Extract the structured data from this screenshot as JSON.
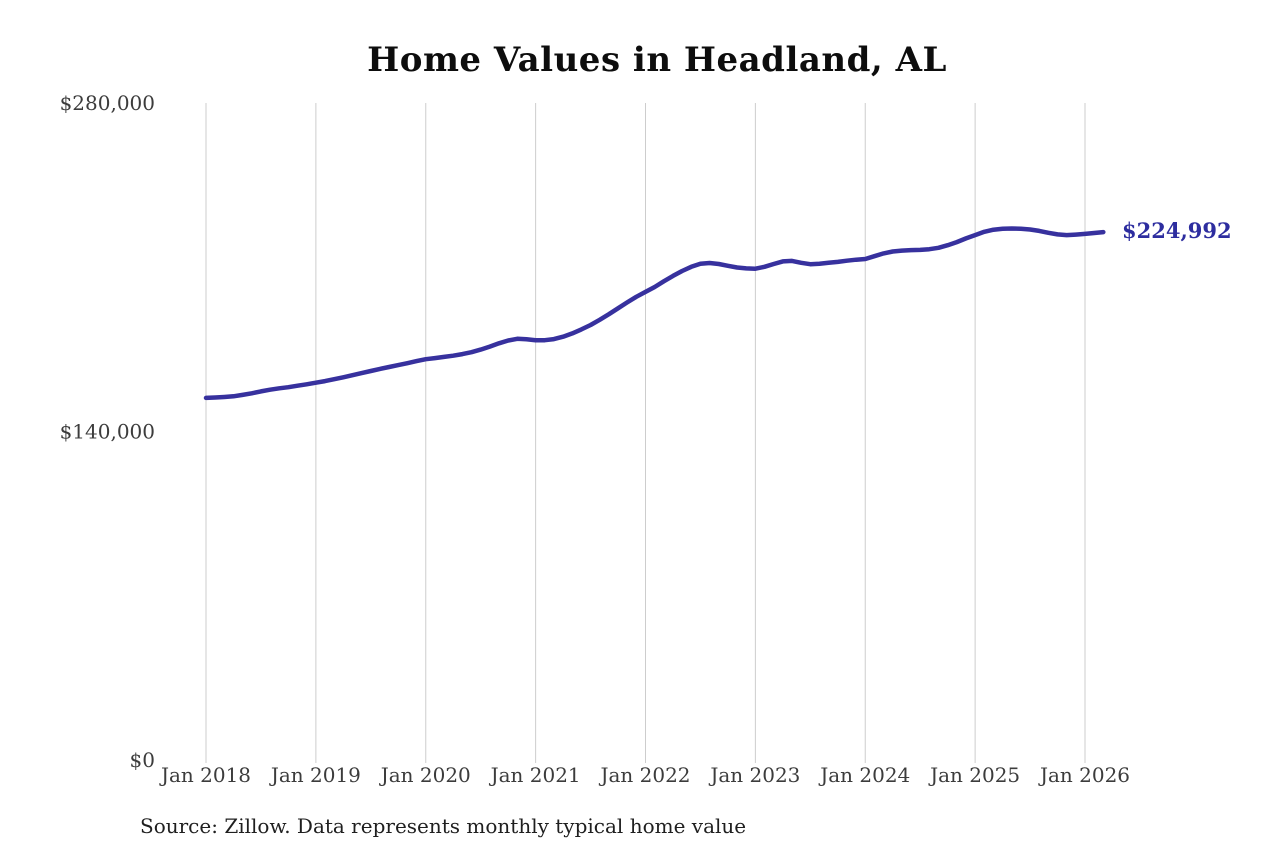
{
  "title": "Home Values in Headland, AL",
  "source_note": "Source: Zillow. Data represents monthly typical home value",
  "end_label": "$224,992",
  "colors": {
    "line": "#37319e",
    "end_label": "#2d2d9f",
    "gridline": "#cdcdcd",
    "axis_text": "#3c3c3c",
    "title_text": "#0d0d0d"
  },
  "chart_data": {
    "type": "line",
    "title": "Home Values in Headland, AL",
    "xlabel": "",
    "ylabel": "",
    "ylim": [
      0,
      280000
    ],
    "grid": "vertical-only",
    "legend": "none",
    "x_tick_labels": [
      "Jan 2018",
      "Jan 2019",
      "Jan 2020",
      "Jan 2021",
      "Jan 2022",
      "Jan 2023",
      "Jan 2024",
      "Jan 2025",
      "Jan 2026"
    ],
    "y_ticks": [
      {
        "label": "$0",
        "value": 0
      },
      {
        "label": "$140,000",
        "value": 140000
      },
      {
        "label": "$280,000",
        "value": 280000
      }
    ],
    "start_month": "2018-01",
    "end_month": "2026-03",
    "end_value": 224992,
    "series": [
      {
        "name": "Monthly typical home value",
        "unit": "USD",
        "monthly_values": [
          154300,
          154500,
          154700,
          155000,
          155600,
          156300,
          157100,
          157800,
          158400,
          158900,
          159500,
          160100,
          160800,
          161500,
          162300,
          163100,
          164000,
          164900,
          165800,
          166700,
          167500,
          168300,
          169100,
          170000,
          170800,
          171300,
          171800,
          172300,
          173000,
          173800,
          174900,
          176200,
          177600,
          178800,
          179500,
          179300,
          178900,
          178900,
          179400,
          180400,
          181800,
          183500,
          185400,
          187600,
          190000,
          192500,
          195000,
          197400,
          199500,
          201600,
          204000,
          206300,
          208400,
          210200,
          211500,
          211800,
          211400,
          210600,
          209900,
          209500,
          209400,
          210200,
          211400,
          212500,
          212700,
          211900,
          211300,
          211500,
          211900,
          212300,
          212800,
          213200,
          213500,
          214700,
          215900,
          216700,
          217100,
          217300,
          217400,
          217700,
          218300,
          219400,
          220700,
          222300,
          223700,
          225100,
          226000,
          226400,
          226500,
          226400,
          226100,
          225500,
          224700,
          224000,
          223700,
          223900,
          224200,
          224600,
          224992
        ]
      }
    ]
  }
}
